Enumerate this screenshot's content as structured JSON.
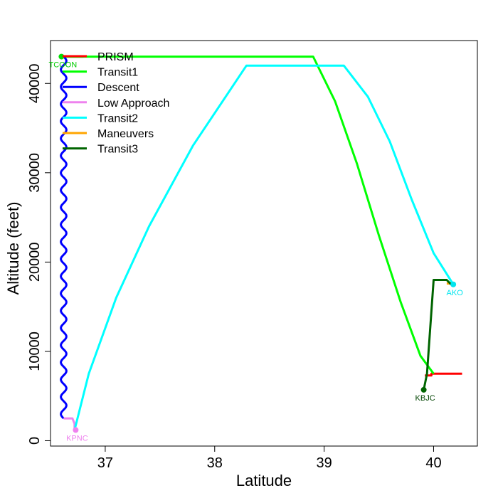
{
  "chart_data": {
    "type": "line",
    "title": "",
    "xlabel": "Latitude",
    "ylabel": "Altitude (feet)",
    "xlim": [
      36.5,
      40.4
    ],
    "ylim": [
      -600,
      44800
    ],
    "xticks": [
      37,
      38,
      39,
      40
    ],
    "yticks": [
      0,
      10000,
      20000,
      30000,
      40000
    ],
    "grid": false,
    "legend_position": "top-left",
    "series": [
      {
        "name": "PRISM",
        "color": "#ff0000",
        "points": [
          [
            36.62,
            43000
          ],
          [
            36.8,
            43000
          ]
        ],
        "extra_points": [
          [
            39.92,
            7300
          ],
          [
            39.98,
            7300
          ],
          [
            39.98,
            7500
          ],
          [
            40.26,
            7500
          ]
        ]
      },
      {
        "name": "Transit1",
        "color": "#00ff00",
        "points": [
          [
            36.62,
            43000
          ],
          [
            38.9,
            43000
          ],
          [
            39.1,
            38000
          ],
          [
            39.3,
            31000
          ],
          [
            39.5,
            23000
          ],
          [
            39.7,
            15500
          ],
          [
            39.88,
            9500
          ],
          [
            40.0,
            7500
          ]
        ]
      },
      {
        "name": "Descent",
        "color": "#0000ff",
        "style": "wavy",
        "start": [
          36.62,
          43000
        ],
        "end": [
          36.62,
          2500
        ],
        "wave_cycles": 21,
        "wave_amplitude_lat": 0.025
      },
      {
        "name": "Low Approach",
        "color": "#ee82ee",
        "points": [
          [
            36.62,
            2500
          ],
          [
            36.62,
            2500
          ],
          [
            36.7,
            2500
          ],
          [
            36.72,
            1900
          ],
          [
            36.72,
            1200
          ]
        ]
      },
      {
        "name": "Transit2",
        "color": "#00ffff",
        "points": [
          [
            36.72,
            1200
          ],
          [
            36.85,
            7500
          ],
          [
            37.1,
            16000
          ],
          [
            37.4,
            24000
          ],
          [
            37.8,
            33000
          ],
          [
            38.29,
            42000
          ],
          [
            39.18,
            42000
          ],
          [
            39.4,
            38500
          ],
          [
            39.6,
            33500
          ],
          [
            39.8,
            27000
          ],
          [
            40.0,
            21000
          ],
          [
            40.18,
            17500
          ]
        ]
      },
      {
        "name": "Maneuvers",
        "color": "#ffa500",
        "points": [
          [
            40.12,
            17600
          ],
          [
            40.2,
            17600
          ]
        ]
      },
      {
        "name": "Transit3",
        "color": "#006400",
        "points": [
          [
            39.91,
            5700
          ],
          [
            39.94,
            7500
          ],
          [
            40.0,
            18000
          ],
          [
            40.12,
            18000
          ],
          [
            40.16,
            17500
          ]
        ]
      }
    ],
    "markers": [
      {
        "label": "TCOON",
        "x": 36.6,
        "y": 43000,
        "color": "#00dd00",
        "label_color": "#00cc00",
        "label_pos": "below"
      },
      {
        "label": "KPNC",
        "x": 36.73,
        "y": 1200,
        "color": "#ee82ee",
        "label_color": "#ee82ee",
        "label_pos": "below"
      },
      {
        "label": "AKO",
        "x": 40.18,
        "y": 17500,
        "color": "#00e5ee",
        "label_color": "#00e5ee",
        "label_pos": "below"
      },
      {
        "label": "KBJC",
        "x": 39.91,
        "y": 5700,
        "color": "#006400",
        "label_color": "#004400",
        "label_pos": "below"
      }
    ]
  }
}
